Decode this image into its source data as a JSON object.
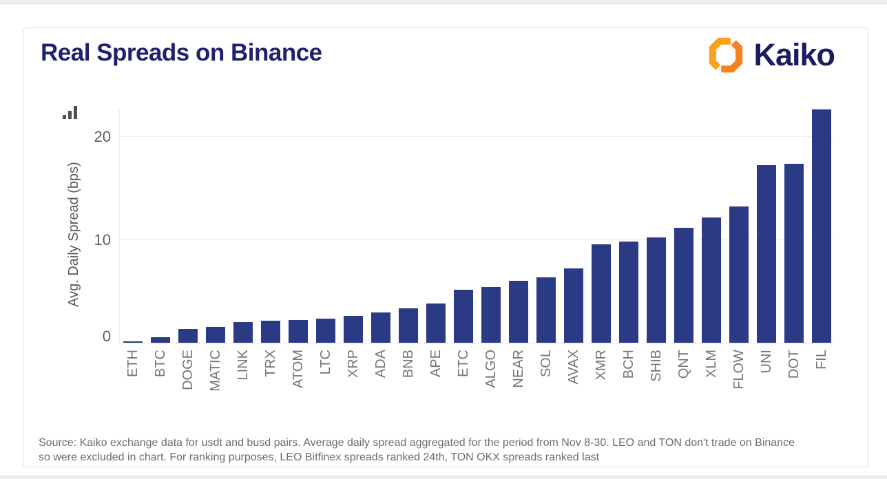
{
  "header": {
    "title": "Real Spreads on Binance",
    "logo_text": "Kaiko"
  },
  "chart_data": {
    "type": "bar",
    "title": "Real Spreads on Binance",
    "xlabel": "",
    "ylabel": "Avg. Daily Spread (bps)",
    "ylim": [
      0,
      23
    ],
    "yticks": [
      0,
      10,
      20
    ],
    "grid": true,
    "legend": "none",
    "bar_color": "#2a3a85",
    "categories": [
      "ETH",
      "BTC",
      "DOGE",
      "MATIC",
      "LINK",
      "TRX",
      "ATOM",
      "LTC",
      "XRP",
      "ADA",
      "BNB",
      "APE",
      "ETC",
      "ALGO",
      "NEAR",
      "SOL",
      "AVAX",
      "XMR",
      "BCH",
      "SHIB",
      "QNT",
      "XLM",
      "FLOW",
      "UNI",
      "DOT",
      "FIL"
    ],
    "values": [
      0.1,
      0.5,
      1.3,
      1.5,
      2.0,
      2.1,
      2.2,
      2.3,
      2.6,
      2.9,
      3.3,
      3.8,
      5.1,
      5.4,
      6.0,
      6.3,
      7.2,
      9.5,
      9.8,
      10.2,
      11.1,
      12.1,
      13.2,
      17.2,
      17.3,
      22.6
    ],
    "units": "bps"
  },
  "footer": {
    "lines": [
      "Source: Kaiko exchange data for usdt and busd pairs. Average daily spread aggregated for the period from Nov 8-30. LEO and TON don't trade on Binance",
      "so were excluded in chart. For ranking purposes, LEO Bitfinex spreads ranked 24th, TON OKX spreads ranked last"
    ]
  },
  "icons": {
    "kaiko_mark": "kaiko-hexagon-chevrons-icon",
    "axis_icon": "bar-chart-icon"
  },
  "colors": {
    "title_navy": "#1f206e",
    "logo_navy": "#1a1c60",
    "bar_navy": "#2a3a85",
    "logo_orange_light": "#FAA21B",
    "logo_orange_dark": "#F58220",
    "grid_gray": "#ececec",
    "text_gray": "#6b6b6b"
  }
}
